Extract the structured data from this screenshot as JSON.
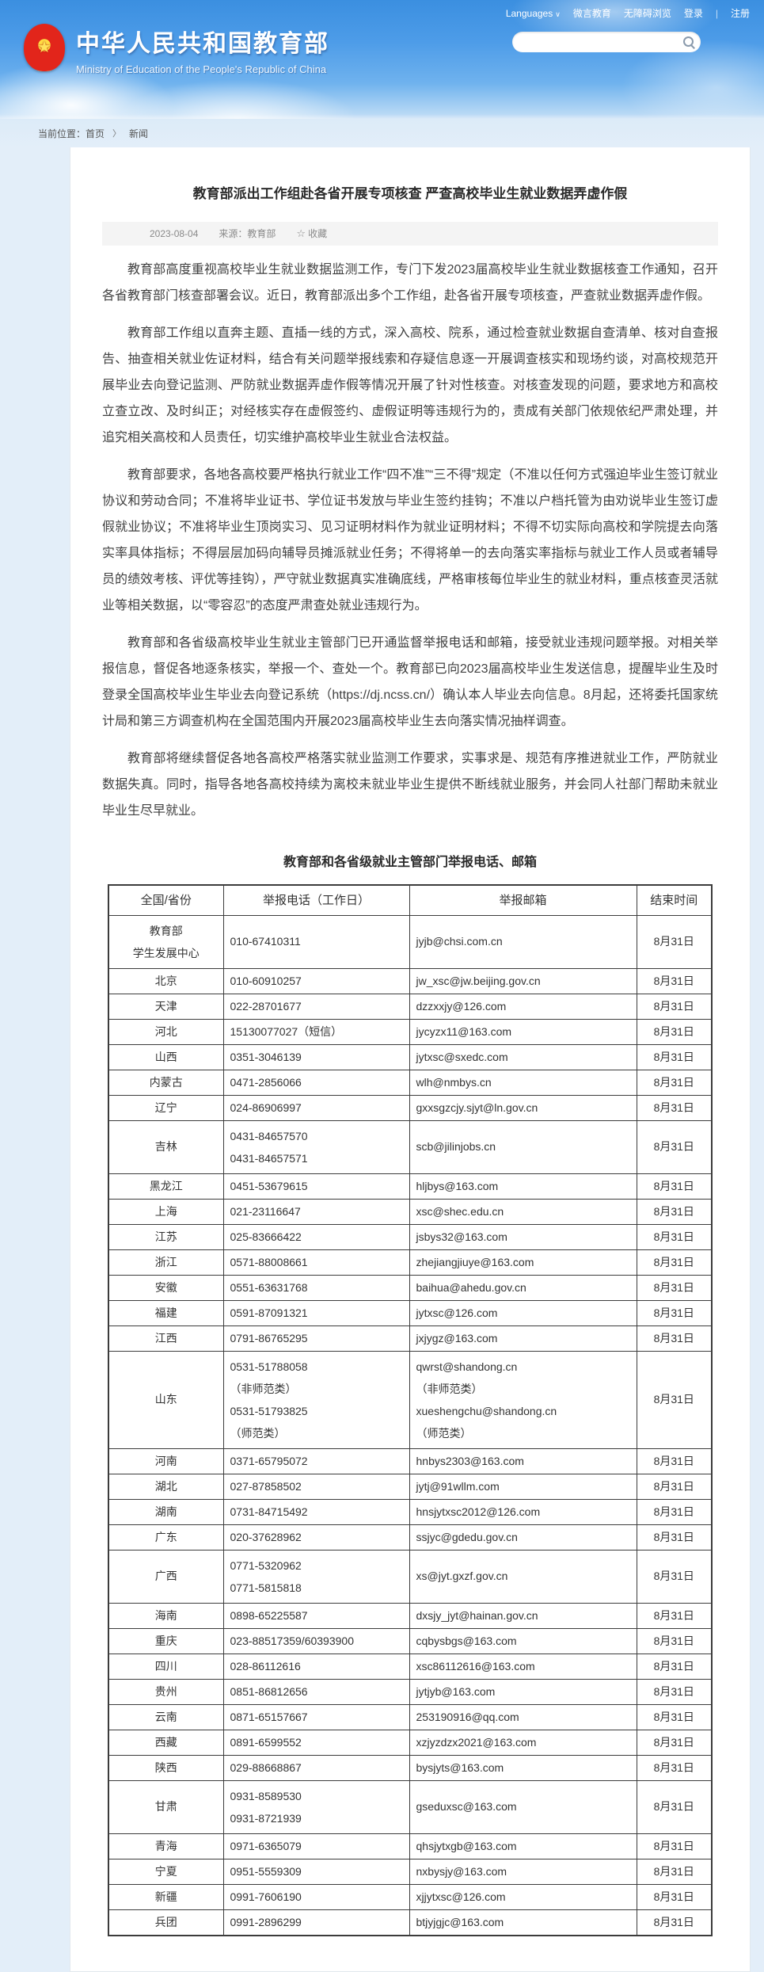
{
  "topbar": {
    "languages": "Languages",
    "links": [
      "微言教育",
      "无障碍浏览",
      "登录",
      "注册"
    ],
    "separator": "|"
  },
  "header": {
    "site_title": "中华人民共和国教育部",
    "site_subtitle": "Ministry of Education of the People's Republic of China",
    "search_placeholder": ""
  },
  "breadcrumb": {
    "label": "当前位置：",
    "items": [
      "首页",
      "新闻"
    ],
    "separator": "〉"
  },
  "article": {
    "title": "教育部派出工作组赴各省开展专项核查 严查高校毕业生就业数据弄虚作假",
    "date": "2023-08-04",
    "source": "来源：教育部",
    "favorite_label": "收藏",
    "paragraphs": [
      "教育部高度重视高校毕业生就业数据监测工作，专门下发2023届高校毕业生就业数据核查工作通知，召开各省教育部门核查部署会议。近日，教育部派出多个工作组，赴各省开展专项核查，严查就业数据弄虚作假。",
      "教育部工作组以直奔主题、直插一线的方式，深入高校、院系，通过检查就业数据自查清单、核对自查报告、抽查相关就业佐证材料，结合有关问题举报线索和存疑信息逐一开展调查核实和现场约谈，对高校规范开展毕业去向登记监测、严防就业数据弄虚作假等情况开展了针对性核查。对核查发现的问题，要求地方和高校立查立改、及时纠正；对经核实存在虚假签约、虚假证明等违规行为的，责成有关部门依规依纪严肃处理，并追究相关高校和人员责任，切实维护高校毕业生就业合法权益。",
      "教育部要求，各地各高校要严格执行就业工作“四不准”“三不得”规定（不准以任何方式强迫毕业生签订就业协议和劳动合同；不准将毕业证书、学位证书发放与毕业生签约挂钩；不准以户档托管为由劝说毕业生签订虚假就业协议；不准将毕业生顶岗实习、见习证明材料作为就业证明材料；不得不切实际向高校和学院提去向落实率具体指标；不得层层加码向辅导员摊派就业任务；不得将单一的去向落实率指标与就业工作人员或者辅导员的绩效考核、评优等挂钩），严守就业数据真实准确底线，严格审核每位毕业生的就业材料，重点核查灵活就业等相关数据，以“零容忍”的态度严肃查处就业违规行为。",
      "教育部和各省级高校毕业生就业主管部门已开通监督举报电话和邮箱，接受就业违规问题举报。对相关举报信息，督促各地逐条核实，举报一个、查处一个。教育部已向2023届高校毕业生发送信息，提醒毕业生及时登录全国高校毕业生毕业去向登记系统（https://dj.ncss.cn/）确认本人毕业去向信息。8月起，还将委托国家统计局和第三方调查机构在全国范围内开展2023届高校毕业生去向落实情况抽样调查。",
      "教育部将继续督促各地各高校严格落实就业监测工作要求，实事求是、规范有序推进就业工作，严防就业数据失真。同时，指导各地各高校持续为离校未就业毕业生提供不断线就业服务，并会同人社部门帮助未就业毕业生尽早就业。"
    ]
  },
  "table": {
    "caption": "教育部和各省级就业主管部门举报电话、邮箱",
    "headers": [
      "全国/省份",
      "举报电话（工作日）",
      "举报邮箱",
      "结束时间"
    ],
    "rows": [
      {
        "region": [
          "教育部",
          "学生发展中心"
        ],
        "phone": [
          "010-67410311"
        ],
        "email": [
          "jyjb@chsi.com.cn"
        ],
        "deadline": "8月31日"
      },
      {
        "region": [
          "北京"
        ],
        "phone": [
          "010-60910257"
        ],
        "email": [
          "jw_xsc@jw.beijing.gov.cn"
        ],
        "deadline": "8月31日"
      },
      {
        "region": [
          "天津"
        ],
        "phone": [
          "022-28701677"
        ],
        "email": [
          "dzzxxjy@126.com"
        ],
        "deadline": "8月31日"
      },
      {
        "region": [
          "河北"
        ],
        "phone": [
          "15130077027（短信）"
        ],
        "email": [
          "jycyzx11@163.com"
        ],
        "deadline": "8月31日"
      },
      {
        "region": [
          "山西"
        ],
        "phone": [
          "0351-3046139"
        ],
        "email": [
          "jytxsc@sxedc.com"
        ],
        "deadline": "8月31日"
      },
      {
        "region": [
          "内蒙古"
        ],
        "phone": [
          "0471-2856066"
        ],
        "email": [
          "wlh@nmbys.cn"
        ],
        "deadline": "8月31日"
      },
      {
        "region": [
          "辽宁"
        ],
        "phone": [
          "024-86906997"
        ],
        "email": [
          "gxxsgzcjy.sjyt@ln.gov.cn"
        ],
        "deadline": "8月31日"
      },
      {
        "region": [
          "吉林"
        ],
        "phone": [
          "0431-84657570",
          "0431-84657571"
        ],
        "email": [
          "scb@jilinjobs.cn"
        ],
        "deadline": "8月31日"
      },
      {
        "region": [
          "黑龙江"
        ],
        "phone": [
          "0451-53679615"
        ],
        "email": [
          "hljbys@163.com"
        ],
        "deadline": "8月31日"
      },
      {
        "region": [
          "上海"
        ],
        "phone": [
          "021-23116647"
        ],
        "email": [
          "xsc@shec.edu.cn"
        ],
        "deadline": "8月31日"
      },
      {
        "region": [
          "江苏"
        ],
        "phone": [
          "025-83666422"
        ],
        "email": [
          "jsbys32@163.com"
        ],
        "deadline": "8月31日"
      },
      {
        "region": [
          "浙江"
        ],
        "phone": [
          "0571-88008661"
        ],
        "email": [
          "zhejiangjiuye@163.com"
        ],
        "deadline": "8月31日"
      },
      {
        "region": [
          "安徽"
        ],
        "phone": [
          "0551-63631768"
        ],
        "email": [
          "baihua@ahedu.gov.cn"
        ],
        "deadline": "8月31日"
      },
      {
        "region": [
          "福建"
        ],
        "phone": [
          "0591-87091321"
        ],
        "email": [
          "jytxsc@126.com"
        ],
        "deadline": "8月31日"
      },
      {
        "region": [
          "江西"
        ],
        "phone": [
          "0791-86765295"
        ],
        "email": [
          "jxjygz@163.com"
        ],
        "deadline": "8月31日"
      },
      {
        "region": [
          "山东"
        ],
        "phone": [
          "0531-51788058",
          "（非师范类）",
          "0531-51793825",
          "（师范类）"
        ],
        "email": [
          "qwrst@shandong.cn",
          "（非师范类）",
          "xueshengchu@shandong.cn",
          "（师范类）"
        ],
        "deadline": "8月31日"
      },
      {
        "region": [
          "河南"
        ],
        "phone": [
          "0371-65795072"
        ],
        "email": [
          "hnbys2303@163.com"
        ],
        "deadline": "8月31日"
      },
      {
        "region": [
          "湖北"
        ],
        "phone": [
          "027-87858502"
        ],
        "email": [
          "jytj@91wllm.com"
        ],
        "deadline": "8月31日"
      },
      {
        "region": [
          "湖南"
        ],
        "phone": [
          "0731-84715492"
        ],
        "email": [
          "hnsjytxsc2012@126.com"
        ],
        "deadline": "8月31日"
      },
      {
        "region": [
          "广东"
        ],
        "phone": [
          "020-37628962"
        ],
        "email": [
          "ssjyc@gdedu.gov.cn"
        ],
        "deadline": "8月31日"
      },
      {
        "region": [
          "广西"
        ],
        "phone": [
          "0771-5320962",
          "0771-5815818"
        ],
        "email": [
          "xs@jyt.gxzf.gov.cn"
        ],
        "deadline": "8月31日"
      },
      {
        "region": [
          "海南"
        ],
        "phone": [
          "0898-65225587"
        ],
        "email": [
          "dxsjy_jyt@hainan.gov.cn"
        ],
        "deadline": "8月31日"
      },
      {
        "region": [
          "重庆"
        ],
        "phone": [
          "023-88517359/60393900"
        ],
        "email": [
          "cqbysbgs@163.com"
        ],
        "deadline": "8月31日"
      },
      {
        "region": [
          "四川"
        ],
        "phone": [
          "028-86112616"
        ],
        "email": [
          "xsc86112616@163.com"
        ],
        "deadline": "8月31日"
      },
      {
        "region": [
          "贵州"
        ],
        "phone": [
          "0851-86812656"
        ],
        "email": [
          "jytjyb@163.com"
        ],
        "deadline": "8月31日"
      },
      {
        "region": [
          "云南"
        ],
        "phone": [
          "0871-65157667"
        ],
        "email": [
          "253190916@qq.com"
        ],
        "deadline": "8月31日"
      },
      {
        "region": [
          "西藏"
        ],
        "phone": [
          "0891-6599552"
        ],
        "email": [
          "xzjyzdzx2021@163.com"
        ],
        "deadline": "8月31日"
      },
      {
        "region": [
          "陕西"
        ],
        "phone": [
          "029-88668867"
        ],
        "email": [
          "bysjyts@163.com"
        ],
        "deadline": "8月31日"
      },
      {
        "region": [
          "甘肃"
        ],
        "phone": [
          "0931-8589530",
          "0931-8721939"
        ],
        "email": [
          "gseduxsc@163.com"
        ],
        "deadline": "8月31日"
      },
      {
        "region": [
          "青海"
        ],
        "phone": [
          "0971-6365079"
        ],
        "email": [
          "qhsjytxgb@163.com"
        ],
        "deadline": "8月31日"
      },
      {
        "region": [
          "宁夏"
        ],
        "phone": [
          "0951-5559309"
        ],
        "email": [
          "nxbysjy@163.com"
        ],
        "deadline": "8月31日"
      },
      {
        "region": [
          "新疆"
        ],
        "phone": [
          "0991-7606190"
        ],
        "email": [
          "xjjytxsc@126.com"
        ],
        "deadline": "8月31日"
      },
      {
        "region": [
          "兵团"
        ],
        "phone": [
          "0991-2896299"
        ],
        "email": [
          "btjyjgjc@163.com"
        ],
        "deadline": "8月31日"
      }
    ]
  },
  "colors": {
    "header_blue": "#4796e6",
    "emblem_red": "#e2251b",
    "emblem_gold": "#f6c234"
  }
}
